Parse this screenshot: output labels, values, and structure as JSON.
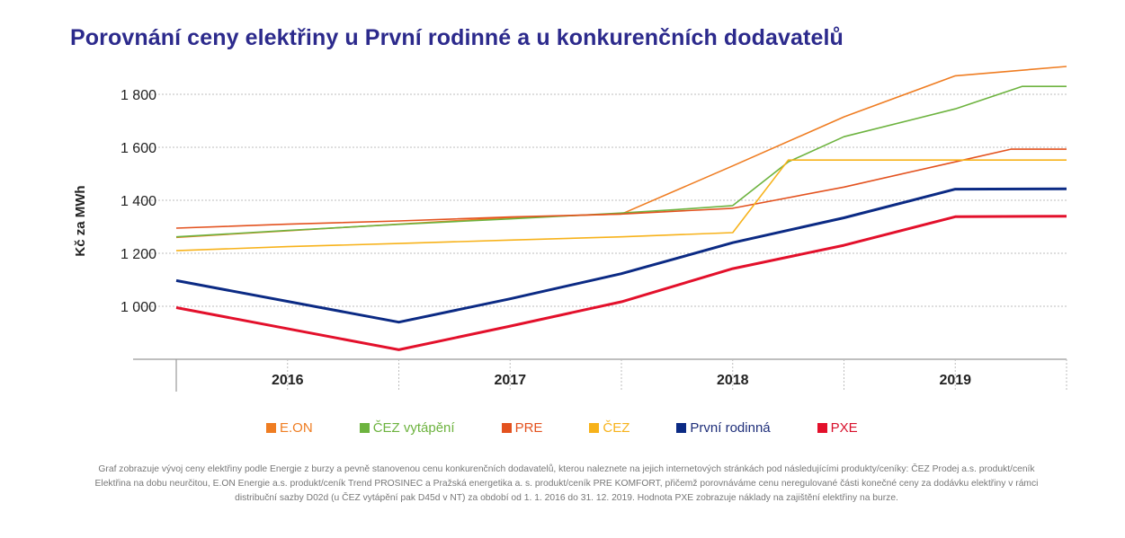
{
  "title": "Porovnání ceny elektřiny u První rodinné a u konkurenčních dodavatelů",
  "note": "Graf zobrazuje vývoj ceny elektřiny podle Energie z burzy a pevně stanovenou cenu konkurenčních dodavatelů, kterou naleznete na jejich internetových stránkách pod následujícími produkty/ceníky: ČEZ Prodej a.s. produkt/ceník Elektřina na dobu neurčitou, E.ON Energie a.s. produkt/ceník Trend PROSINEC a Pražská energetika a. s. produkt/ceník PRE KOMFORT, přičemž porovnáváme cenu neregulované části konečné ceny za dodávku elektřiny v rámci distribuční sazby D02d (u ČEZ vytápění pak D45d v NT) za období od 1. 1. 2016 do 31. 12. 2019. Hodnota PXE zobrazuje náklady na zajištění elektřiny na burze.",
  "chart_data": {
    "type": "line",
    "title": "Porovnání ceny elektřiny u První rodinné a u konkurenčních dodavatelů",
    "ylabel": "Kč za MWh",
    "xlabel": "",
    "ylim": [
      800,
      1900
    ],
    "y_ticks": [
      {
        "value": 1000,
        "label": "1 000"
      },
      {
        "value": 1200,
        "label": "1 200"
      },
      {
        "value": 1400,
        "label": "1 400"
      },
      {
        "value": 1600,
        "label": "1 600"
      },
      {
        "value": 1800,
        "label": "1 800"
      }
    ],
    "x_range": [
      2016,
      2020
    ],
    "categories": [
      "2016",
      "2017",
      "2018",
      "2019"
    ],
    "grid": true,
    "series": [
      {
        "name": "E.ON",
        "color": "#ef7d22",
        "x": [
          2016.0,
          2016.5,
          2017.0,
          2017.5,
          2018.0,
          2018.5,
          2019.0,
          2019.5,
          2020.0
        ],
        "y": [
          1260,
          1285,
          1310,
          1335,
          1348,
          1530,
          1715,
          1870,
          1905
        ]
      },
      {
        "name": "ČEZ vytápění",
        "color": "#6db33f",
        "x": [
          2016.0,
          2016.5,
          2017.0,
          2017.5,
          2018.0,
          2018.25,
          2018.5,
          2018.75,
          2019.0,
          2019.5,
          2019.8,
          2020.0
        ],
        "y": [
          1262,
          1286,
          1309,
          1330,
          1352,
          1365,
          1380,
          1545,
          1640,
          1745,
          1830,
          1830
        ]
      },
      {
        "name": "PRE",
        "color": "#e3521f",
        "x": [
          2016.0,
          2016.5,
          2017.0,
          2017.5,
          2018.0,
          2018.5,
          2019.0,
          2019.5,
          2019.75,
          2020.0
        ],
        "y": [
          1295,
          1310,
          1322,
          1337,
          1348,
          1370,
          1450,
          1545,
          1593,
          1593
        ]
      },
      {
        "name": "ČEZ",
        "color": "#f7b21a",
        "x": [
          2016.0,
          2016.5,
          2017.0,
          2017.5,
          2018.0,
          2018.5,
          2018.75,
          2019.0,
          2019.5,
          2020.0
        ],
        "y": [
          1210,
          1225,
          1237,
          1250,
          1262,
          1278,
          1552,
          1552,
          1552,
          1552
        ]
      },
      {
        "name": "První rodinná",
        "color": "#0b2a84",
        "x": [
          2016.0,
          2017.0,
          2017.5,
          2018.0,
          2018.5,
          2019.0,
          2019.5,
          2020.0
        ],
        "y": [
          1097,
          940,
          1028,
          1123,
          1240,
          1334,
          1442,
          1443
        ]
      },
      {
        "name": "PXE",
        "color": "#e3102b",
        "x": [
          2016.0,
          2017.0,
          2017.5,
          2018.0,
          2018.5,
          2019.0,
          2019.5,
          2020.0
        ],
        "y": [
          995,
          836,
          925,
          1017,
          1142,
          1230,
          1338,
          1340
        ]
      }
    ]
  }
}
